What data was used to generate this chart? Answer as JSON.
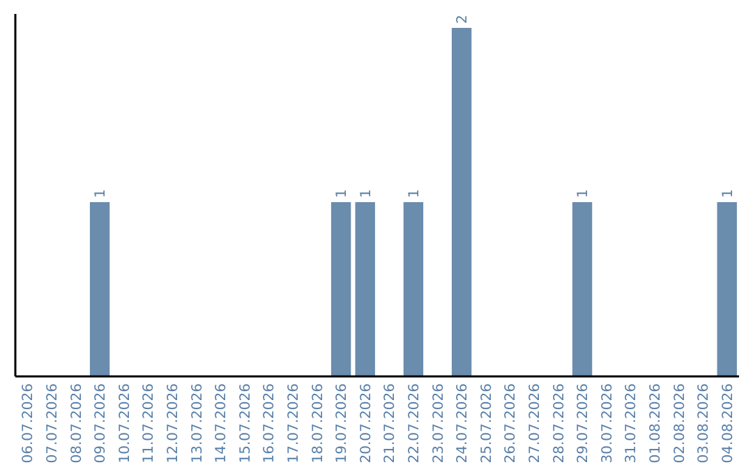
{
  "chart_data": {
    "type": "bar",
    "categories": [
      "06.07.2026",
      "07.07.2026",
      "08.07.2026",
      "09.07.2026",
      "10.07.2026",
      "11.07.2026",
      "12.07.2026",
      "13.07.2026",
      "14.07.2026",
      "15.07.2026",
      "16.07.2026",
      "17.07.2026",
      "18.07.2026",
      "19.07.2026",
      "20.07.2026",
      "21.07.2026",
      "22.07.2026",
      "23.07.2026",
      "24.07.2026",
      "25.07.2026",
      "26.07.2026",
      "27.07.2026",
      "28.07.2026",
      "29.07.2026",
      "30.07.2026",
      "31.07.2026",
      "01.08.2026",
      "02.08.2026",
      "03.08.2026",
      "04.08.2026"
    ],
    "values": [
      0,
      0,
      0,
      1,
      0,
      0,
      0,
      0,
      0,
      0,
      0,
      0,
      0,
      1,
      1,
      0,
      1,
      0,
      2,
      0,
      0,
      0,
      0,
      1,
      0,
      0,
      0,
      0,
      0,
      1
    ],
    "value_labels": [
      null,
      null,
      null,
      "1",
      null,
      null,
      null,
      null,
      null,
      null,
      null,
      null,
      null,
      "1",
      "1",
      null,
      "1",
      null,
      "2",
      null,
      null,
      null,
      null,
      "1",
      null,
      null,
      null,
      null,
      null,
      "1"
    ],
    "color": "#6a8cad",
    "tick_labels": "x"
  }
}
